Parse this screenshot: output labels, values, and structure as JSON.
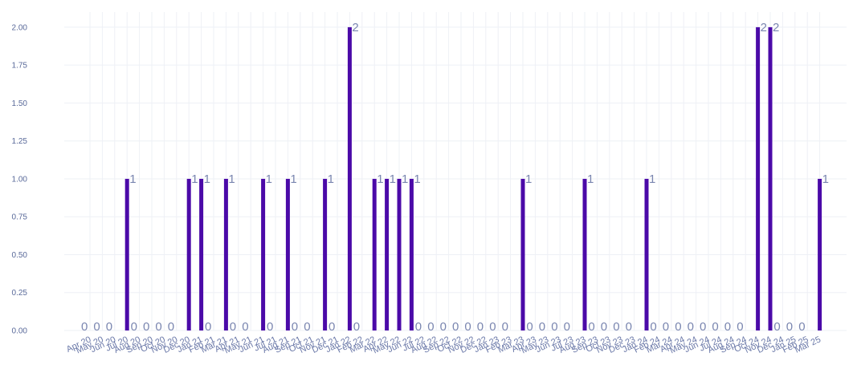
{
  "chart_data": {
    "type": "bar",
    "title": "",
    "xlabel": "",
    "ylabel": "",
    "ylim": [
      0,
      2.1
    ],
    "yticks": [
      "0.00",
      "0.25",
      "0.50",
      "0.75",
      "1.00",
      "1.25",
      "1.50",
      "1.75",
      "2.00"
    ],
    "grid": true,
    "bar_color": "#4b0aa8",
    "categories": [
      "Apr 20",
      "May 20",
      "Jun 20",
      "Jul 20",
      "Aug 20",
      "Sep 20",
      "Oct 20",
      "Nov 20",
      "Dec 20",
      "Jan 21",
      "Feb 21",
      "Mar 21",
      "Apr 21",
      "May 21",
      "Jun 21",
      "Jul 21",
      "Aug 21",
      "Sep 21",
      "Oct 21",
      "Nov 21",
      "Dec 21",
      "Jan 22",
      "Feb 22",
      "Mar 22",
      "Apr 22",
      "May 22",
      "Jun 22",
      "Jul 22",
      "Aug 22",
      "Sep 22",
      "Oct 22",
      "Nov 22",
      "Dec 22",
      "Jan 23",
      "Feb 23",
      "Mar 23",
      "Apr 23",
      "May 23",
      "Jun 23",
      "Jul 23",
      "Aug 23",
      "Sep 23",
      "Oct 23",
      "Nov 23",
      "Dec 23",
      "Jan 24",
      "Feb 24",
      "Mar 24",
      "Apr 24",
      "May 24",
      "Jun 24",
      "Jul 24",
      "Aug 24",
      "Sep 24",
      "Oct 24",
      "Nov 24",
      "Dec 24",
      "Jan 25",
      "Feb 25",
      "Mar 25"
    ],
    "values": [
      0,
      0,
      0,
      1,
      0,
      0,
      0,
      0,
      1,
      1,
      0,
      1,
      0,
      0,
      1,
      0,
      1,
      0,
      0,
      1,
      0,
      2,
      0,
      1,
      1,
      1,
      1,
      0,
      0,
      0,
      0,
      0,
      0,
      0,
      0,
      1,
      0,
      0,
      0,
      0,
      1,
      0,
      0,
      0,
      0,
      1,
      0,
      0,
      0,
      0,
      0,
      0,
      0,
      0,
      2,
      2,
      0,
      0,
      0,
      1
    ]
  }
}
